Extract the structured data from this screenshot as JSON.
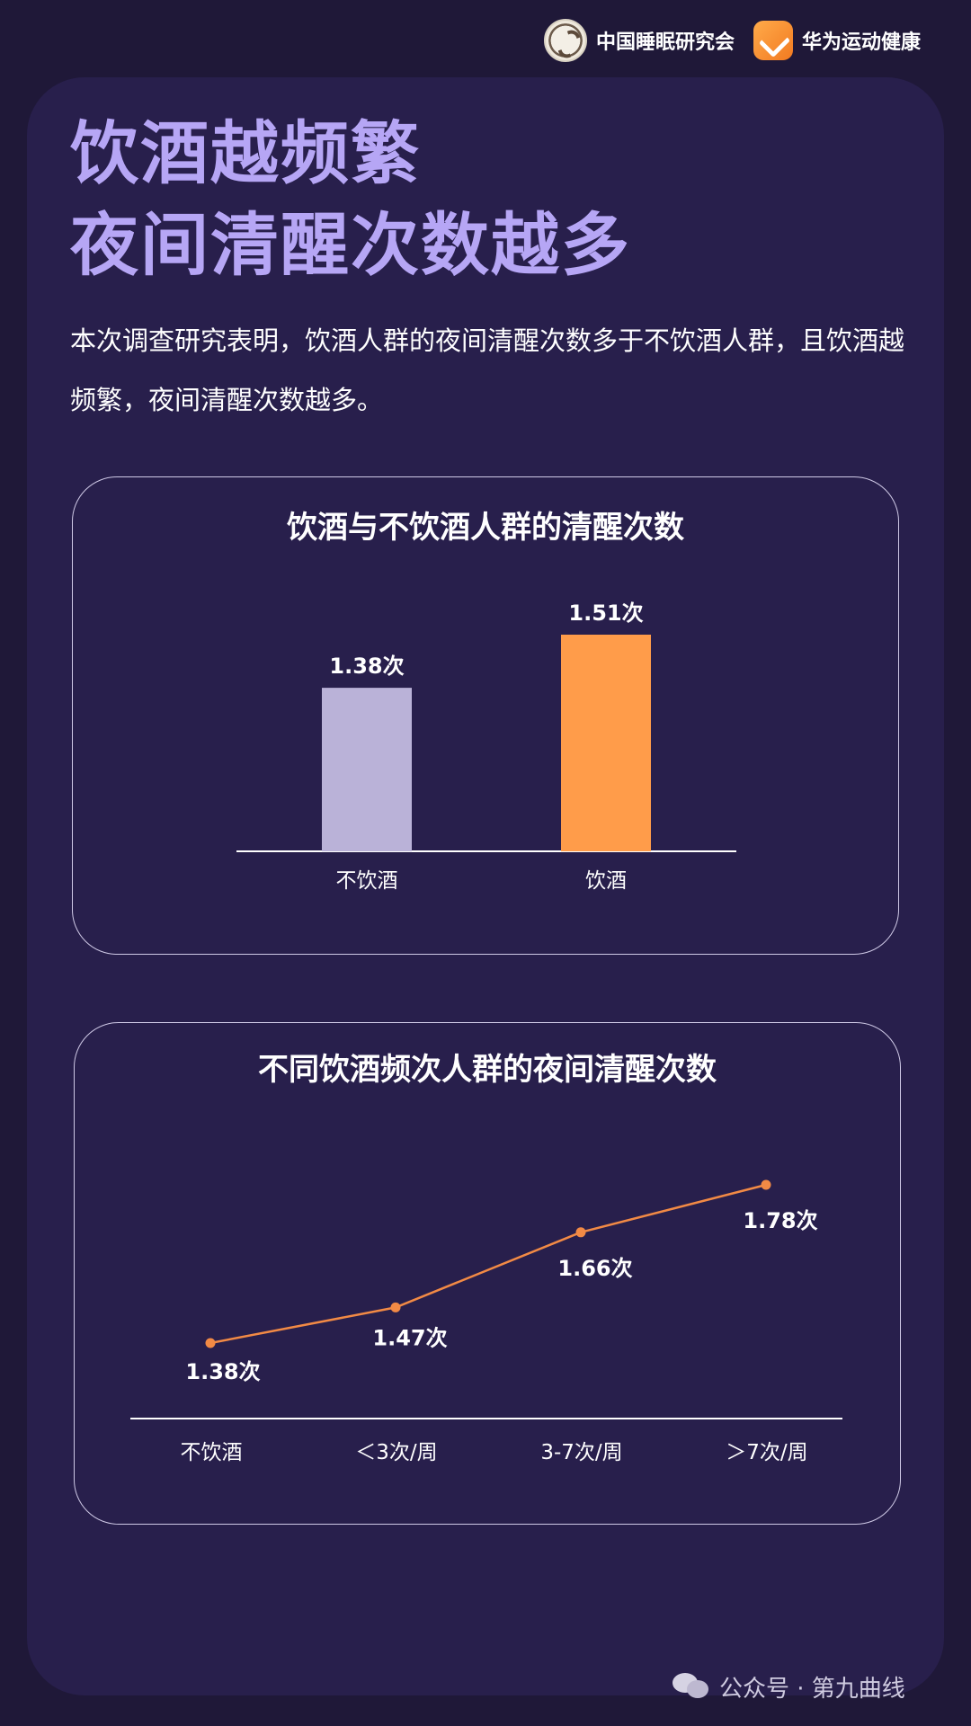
{
  "header": {
    "org1_name": "中国睡眠研究会",
    "org2_name": "华为运动健康"
  },
  "main": {
    "title_line1": "饮酒越频繁",
    "title_line2": "夜间清醒次数越多",
    "intro": "本次调查研究表明，饮酒人群的夜间清醒次数多于不饮酒人群，且饮酒越频繁，夜间清醒次数越多。"
  },
  "colors": {
    "title": "#b6a6f5",
    "bar_nondrink": "#bab2d8",
    "bar_drink": "#ff9c4a",
    "line": "#f28a45"
  },
  "chart_data": [
    {
      "type": "bar",
      "title": "饮酒与不饮酒人群的清醒次数",
      "categories": [
        "不饮酒",
        "饮酒"
      ],
      "values": [
        1.38,
        1.51
      ],
      "value_labels": [
        "1.38次",
        "1.51次"
      ],
      "unit": "次",
      "xlabel": "",
      "ylabel": "",
      "grid": false
    },
    {
      "type": "line",
      "title": "不同饮酒频次人群的夜间清醒次数",
      "categories": [
        "不饮酒",
        "＜3次/周",
        "3-7次/周",
        "＞7次/周"
      ],
      "values": [
        1.38,
        1.47,
        1.66,
        1.78
      ],
      "value_labels": [
        "1.38次",
        "1.47次",
        "1.66次",
        "1.78次"
      ],
      "unit": "次",
      "xlabel": "",
      "ylabel": "",
      "grid": false
    }
  ],
  "watermark": {
    "text": "公众号 · 第九曲线"
  }
}
